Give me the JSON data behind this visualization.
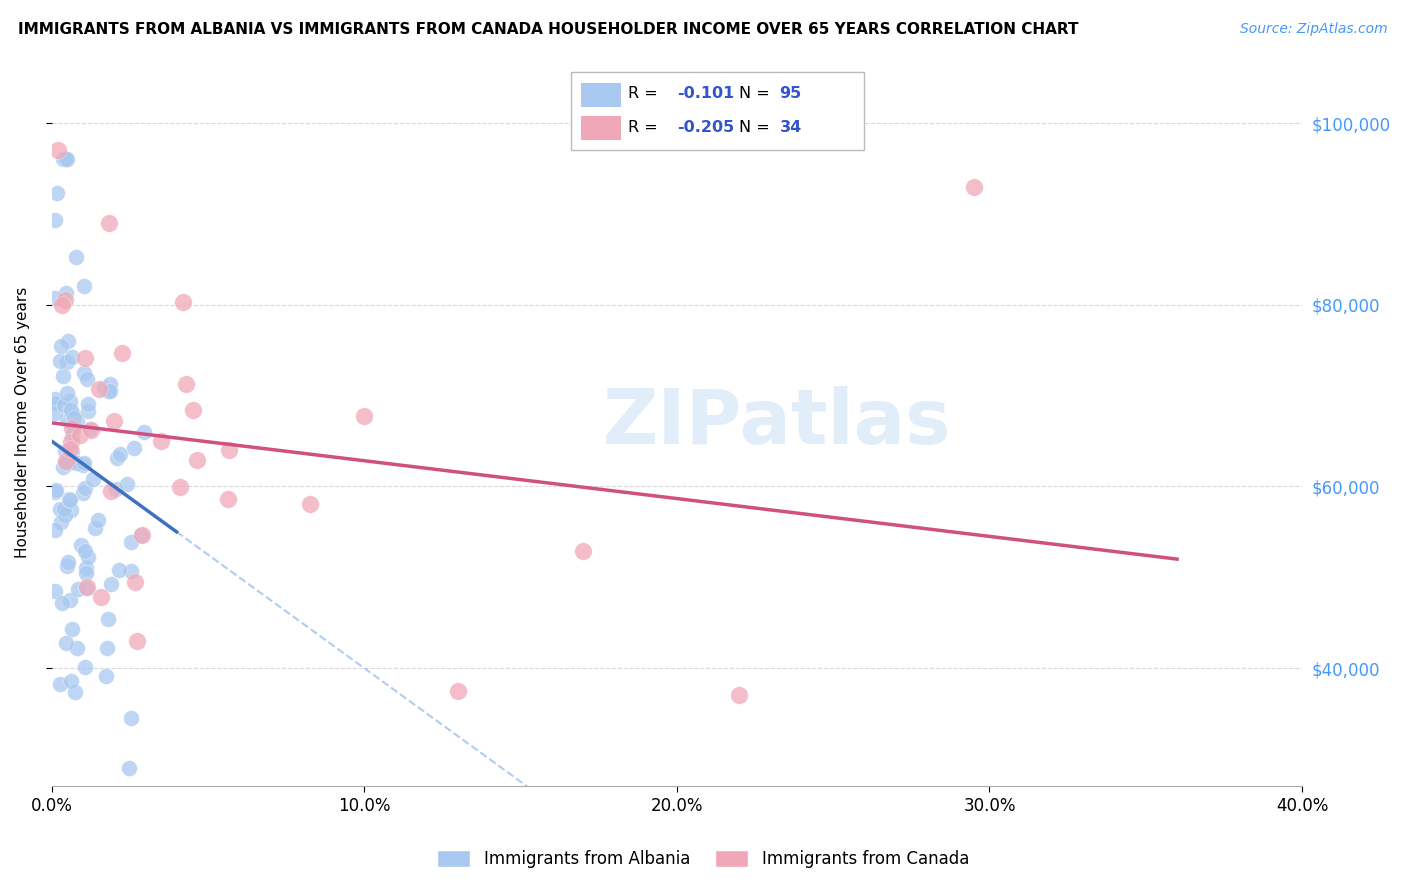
{
  "title": "IMMIGRANTS FROM ALBANIA VS IMMIGRANTS FROM CANADA HOUSEHOLDER INCOME OVER 65 YEARS CORRELATION CHART",
  "source": "Source: ZipAtlas.com",
  "ylabel": "Householder Income Over 65 years",
  "xlim": [
    0.0,
    0.4
  ],
  "ylim": [
    27000,
    107000
  ],
  "yticks": [
    40000,
    60000,
    80000,
    100000
  ],
  "ytick_labels": [
    "$40,000",
    "$60,000",
    "$80,000",
    "$100,000"
  ],
  "xticks": [
    0.0,
    0.1,
    0.2,
    0.3,
    0.4
  ],
  "xtick_labels": [
    "0.0%",
    "10.0%",
    "20.0%",
    "30.0%",
    "40.0%"
  ],
  "albania_R": -0.101,
  "albania_N": 95,
  "canada_R": -0.205,
  "canada_N": 34,
  "albania_color": "#A8C8F0",
  "canada_color": "#F0A8B8",
  "albania_trend_color": "#4070C0",
  "canada_trend_color": "#D05080",
  "albania_dash_color": "#A8C8F0",
  "watermark": "ZIPatlas",
  "background_color": "#FFFFFF",
  "grid_color": "#D8D8D8"
}
